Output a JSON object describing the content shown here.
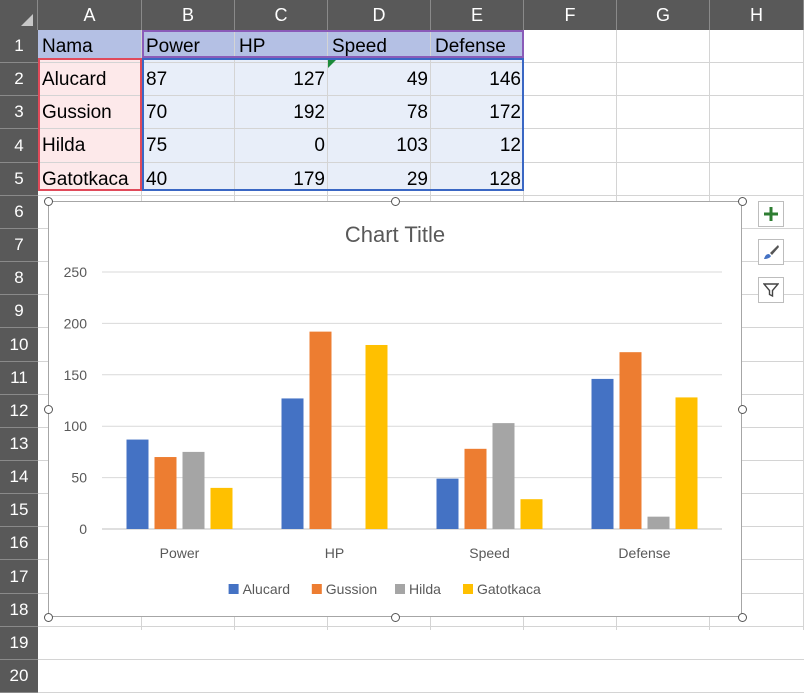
{
  "columns": [
    "A",
    "B",
    "C",
    "D",
    "E",
    "F",
    "G",
    "H"
  ],
  "rows": [
    "1",
    "2",
    "3",
    "4",
    "5",
    "6",
    "7",
    "8",
    "9",
    "10",
    "11",
    "12",
    "13",
    "14",
    "15",
    "16",
    "17",
    "18",
    "19",
    "20"
  ],
  "table": {
    "header": [
      "Nama",
      "Power",
      "HP",
      "Speed",
      "Defense"
    ],
    "records": [
      {
        "name": "Alucard",
        "values": [
          "87",
          "127",
          "49",
          "146"
        ]
      },
      {
        "name": "Gussion",
        "values": [
          "70",
          "192",
          "78",
          "172"
        ]
      },
      {
        "name": "Hilda",
        "values": [
          "75",
          "0",
          "103",
          "12"
        ]
      },
      {
        "name": "Gatotkaca",
        "values": [
          "40",
          "179",
          "29",
          "128"
        ]
      }
    ]
  },
  "chart_tools": {
    "add_icon": "plus-icon",
    "style_icon": "brush-icon",
    "filter_icon": "filter-icon"
  },
  "chart_data": {
    "type": "bar",
    "title": "Chart Title",
    "categories": [
      "Power",
      "HP",
      "Speed",
      "Defense"
    ],
    "series": [
      {
        "name": "Alucard",
        "values": [
          87,
          127,
          49,
          146
        ],
        "color": "#4472c4"
      },
      {
        "name": "Gussion",
        "values": [
          70,
          192,
          78,
          172
        ],
        "color": "#ed7d31"
      },
      {
        "name": "Hilda",
        "values": [
          75,
          0,
          103,
          12
        ],
        "color": "#a5a5a5"
      },
      {
        "name": "Gatotkaca",
        "values": [
          40,
          179,
          29,
          128
        ],
        "color": "#ffc000"
      }
    ],
    "ylim": [
      0,
      250
    ],
    "yticks": [
      "0",
      "50",
      "100",
      "150",
      "200",
      "250"
    ],
    "grid": true,
    "legend": "bottom"
  }
}
